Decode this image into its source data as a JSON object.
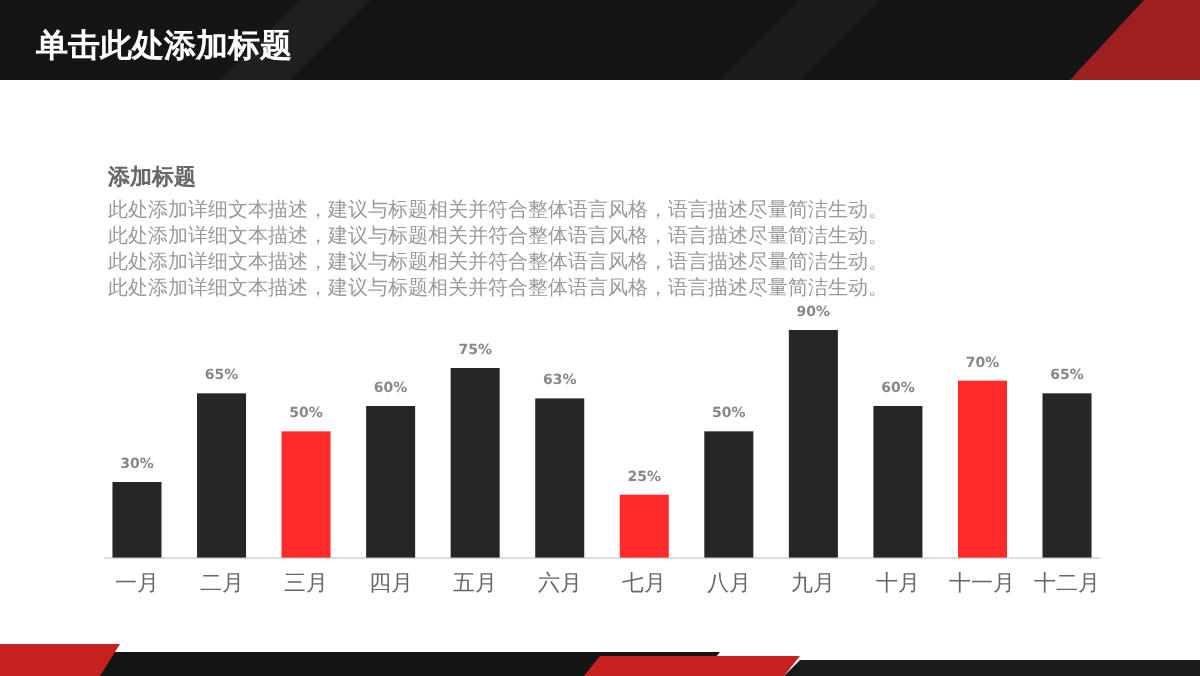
{
  "chart_data": {
    "type": "bar",
    "title": "单击此处添加标题",
    "subtitle": "添加标题",
    "annotations": [
      "此处添加详细文本描述，建议与标题相关并符合整体语言风格，语言描述尽量简洁生动。",
      "此处添加详细文本描述，建议与标题相关并符合整体语言风格，语言描述尽量简洁生动。",
      "此处添加详细文本描述，建议与标题相关并符合整体语言风格，语言描述尽量简洁生动。",
      "此处添加详细文本描述，建议与标题相关并符合整体语言风格，语言描述尽量简洁生动。"
    ],
    "categories": [
      "一月",
      "二月",
      "三月",
      "四月",
      "五月",
      "六月",
      "七月",
      "八月",
      "九月",
      "十月",
      "十一月",
      "十二月"
    ],
    "values": [
      30,
      65,
      50,
      60,
      75,
      63,
      25,
      50,
      90,
      60,
      70,
      65
    ],
    "colors": [
      "#262626",
      "#262626",
      "#ff2a2a",
      "#262626",
      "#262626",
      "#262626",
      "#ff2a2a",
      "#262626",
      "#262626",
      "#262626",
      "#ff2a2a",
      "#262626"
    ],
    "value_labels": [
      "30%",
      "65%",
      "50%",
      "60%",
      "75%",
      "63%",
      "25%",
      "50%",
      "90%",
      "60%",
      "70%",
      "65%"
    ]
  }
}
